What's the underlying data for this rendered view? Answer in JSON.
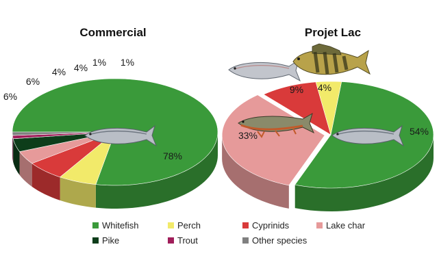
{
  "chart_data": [
    {
      "type": "pie",
      "title": "Commercial",
      "slices": [
        {
          "category": "Whitefish",
          "value": 78,
          "label": "78%"
        },
        {
          "category": "Perch",
          "value": 6,
          "label": "6%"
        },
        {
          "category": "Cyprinids",
          "value": 6,
          "label": "6%"
        },
        {
          "category": "Lake char",
          "value": 4,
          "label": "4%"
        },
        {
          "category": "Pike",
          "value": 4,
          "label": "4%"
        },
        {
          "category": "Trout",
          "value": 1,
          "label": "1%"
        },
        {
          "category": "Other species",
          "value": 1,
          "label": "1%"
        }
      ]
    },
    {
      "type": "pie",
      "title": "Projet Lac",
      "slices": [
        {
          "category": "Whitefish",
          "value": 54,
          "label": "54%"
        },
        {
          "category": "Lake char",
          "value": 33,
          "label": "33%"
        },
        {
          "category": "Cyprinids",
          "value": 9,
          "label": "9%"
        },
        {
          "category": "Perch",
          "value": 4,
          "label": "4%"
        }
      ]
    }
  ],
  "legend": [
    {
      "label": "Whitefish",
      "color": "#3a9a3a"
    },
    {
      "label": "Perch",
      "color": "#f2ea6a"
    },
    {
      "label": "Cyprinids",
      "color": "#d93a3a"
    },
    {
      "label": "Lake char",
      "color": "#e69a9a"
    },
    {
      "label": "Pike",
      "color": "#0d3d1a"
    },
    {
      "label": "Trout",
      "color": "#a01e5a"
    },
    {
      "label": "Other species",
      "color": "#808080"
    }
  ],
  "icons": [
    "whitefish-icon",
    "perch-icon",
    "arctic-char-icon"
  ]
}
